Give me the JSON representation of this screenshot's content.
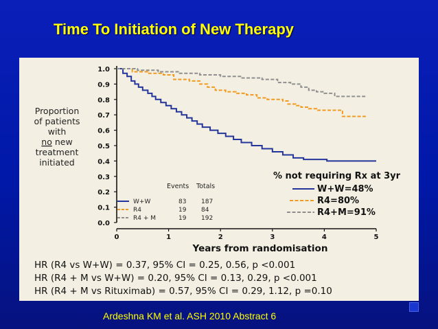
{
  "slide": {
    "title": "Time To Initiation of New Therapy",
    "citation": "Ardeshna KM et al. ASH 2010 Abstract 6"
  },
  "colors": {
    "background": "#0018a8",
    "title": "#ffff00",
    "panel": "#f3f0e3",
    "ww": "#23349a",
    "r4": "#f29a1f",
    "r4m": "#8e8e8e"
  },
  "hazard_ratios": [
    "HR (R4 vs W+W) = 0.37, 95% CI = 0.25, 0.56, p <0.001",
    "HR (R4 + M vs W+W) = 0.20, 95% CI = 0.13, 0.29, p <0.001",
    "HR (R4 + M vs Rituximab) = 0.57, 95% CI = 0.29, 1.12, p =0.10"
  ],
  "chart_data": {
    "type": "line",
    "step": true,
    "ylabel_lines": [
      "Proportion",
      "of patients",
      "with",
      "no new",
      "treatment",
      "initiated"
    ],
    "ylabel_underlined_word": "no",
    "xlabel": "Years from randomisation",
    "xlim": [
      0,
      5
    ],
    "ylim": [
      0,
      1
    ],
    "xticks": [
      "0",
      "1",
      "2",
      "3",
      "4",
      "5"
    ],
    "yticks": [
      "0.0",
      "0.1",
      "0.2",
      "0.3",
      "0.4",
      "0.5",
      "0.6",
      "0.7",
      "0.8",
      "0.9",
      "1.0"
    ],
    "annotation": {
      "title": "% not requiring Rx at 3yr",
      "items": [
        "W+W=48%",
        "R4=80%",
        "R4+M=91%"
      ]
    },
    "table": {
      "headers": [
        "Events",
        "Totals"
      ],
      "rows": [
        {
          "label": "W+W",
          "events": "83",
          "totals": "187"
        },
        {
          "label": "R4",
          "events": "19",
          "totals": "84"
        },
        {
          "label": "R4 + M",
          "events": "19",
          "totals": "192"
        }
      ]
    },
    "series": [
      {
        "name": "W+W",
        "color": "#23349a",
        "x": [
          0,
          0.12,
          0.2,
          0.28,
          0.35,
          0.42,
          0.5,
          0.6,
          0.68,
          0.75,
          0.85,
          0.95,
          1.05,
          1.15,
          1.25,
          1.35,
          1.45,
          1.55,
          1.65,
          1.8,
          1.95,
          2.1,
          2.25,
          2.4,
          2.6,
          2.8,
          3.0,
          3.2,
          3.4,
          3.6,
          3.75,
          4.05,
          4.4,
          5.0
        ],
        "y": [
          1.0,
          0.97,
          0.95,
          0.92,
          0.9,
          0.88,
          0.86,
          0.84,
          0.82,
          0.8,
          0.78,
          0.76,
          0.74,
          0.72,
          0.7,
          0.68,
          0.66,
          0.64,
          0.62,
          0.6,
          0.58,
          0.56,
          0.54,
          0.52,
          0.5,
          0.48,
          0.46,
          0.44,
          0.42,
          0.41,
          0.41,
          0.4,
          0.4,
          0.4
        ]
      },
      {
        "name": "R4",
        "color": "#f29a1f",
        "x": [
          0,
          0.3,
          0.6,
          0.9,
          1.1,
          1.4,
          1.6,
          1.75,
          1.9,
          2.1,
          2.3,
          2.5,
          2.7,
          2.9,
          3.05,
          3.2,
          3.3,
          3.45,
          3.55,
          3.7,
          3.85,
          4.15,
          4.35,
          4.55,
          4.8
        ],
        "y": [
          1.0,
          0.98,
          0.97,
          0.96,
          0.93,
          0.92,
          0.9,
          0.88,
          0.86,
          0.85,
          0.84,
          0.83,
          0.81,
          0.8,
          0.8,
          0.79,
          0.77,
          0.76,
          0.75,
          0.74,
          0.73,
          0.73,
          0.69,
          0.69,
          0.69
        ]
      },
      {
        "name": "R4 + M",
        "color": "#8e8e8e",
        "x": [
          0,
          0.4,
          0.8,
          1.2,
          1.6,
          2.0,
          2.4,
          2.8,
          3.1,
          3.35,
          3.55,
          3.7,
          3.85,
          4.0,
          4.2,
          4.5,
          4.7,
          4.8
        ],
        "y": [
          1.0,
          0.99,
          0.98,
          0.97,
          0.96,
          0.95,
          0.94,
          0.93,
          0.91,
          0.9,
          0.88,
          0.86,
          0.85,
          0.84,
          0.82,
          0.82,
          0.82,
          0.82
        ]
      }
    ]
  }
}
